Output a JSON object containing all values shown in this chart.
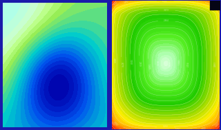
{
  "figsize": [
    3.2,
    1.89
  ],
  "dpi": 100,
  "background_color": "#1a1aaa",
  "left_bg": "#1133cc",
  "left_colors": [
    [
      0.0,
      "#0000aa"
    ],
    [
      0.12,
      "#0022cc"
    ],
    [
      0.25,
      "#0055ee"
    ],
    [
      0.38,
      "#0099dd"
    ],
    [
      0.5,
      "#00cccc"
    ],
    [
      0.62,
      "#55dd88"
    ],
    [
      0.72,
      "#99ee55"
    ],
    [
      0.8,
      "#bbff88"
    ],
    [
      0.88,
      "#ccffcc"
    ],
    [
      1.0,
      "#aaffee"
    ]
  ],
  "right_colors": [
    [
      0.0,
      "#ddffdd"
    ],
    [
      0.1,
      "#aaffaa"
    ],
    [
      0.25,
      "#55ee22"
    ],
    [
      0.42,
      "#22cc00"
    ],
    [
      0.58,
      "#aadd00"
    ],
    [
      0.7,
      "#ffee00"
    ],
    [
      0.8,
      "#ffaa00"
    ],
    [
      0.9,
      "#ff4400"
    ],
    [
      1.0,
      "#cc0000"
    ]
  ]
}
